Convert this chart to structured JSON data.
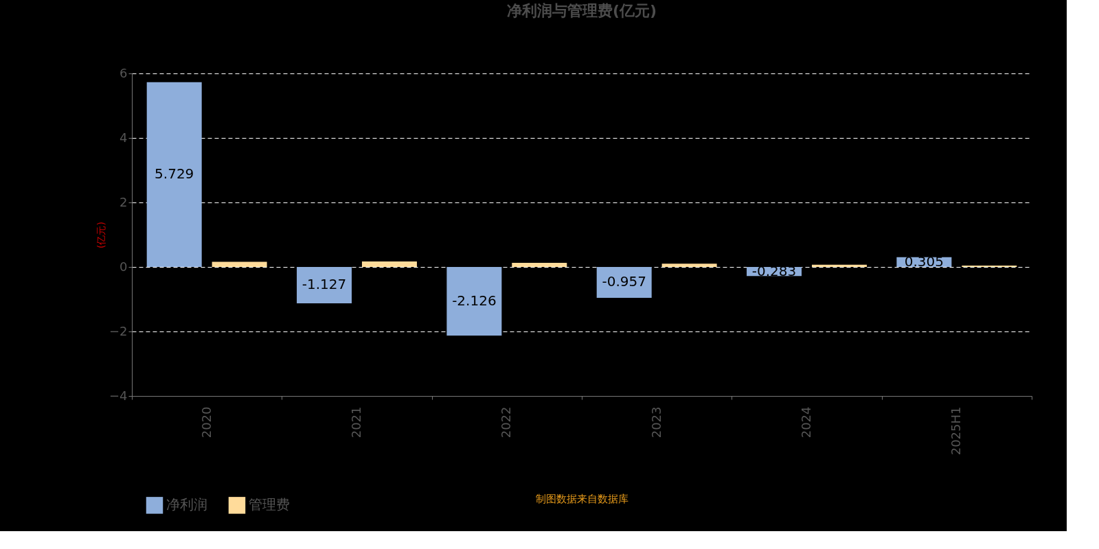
{
  "chart_data": {
    "type": "bar",
    "title": "净利润与管理费(亿元)",
    "ylabel": "(亿元)",
    "categories": [
      "2020",
      "2021",
      "2022",
      "2023",
      "2024",
      "2025H1"
    ],
    "series": [
      {
        "name": "净利润",
        "color": "#8eaedb",
        "values": [
          5.729,
          -1.127,
          -2.126,
          -0.957,
          -0.283,
          0.305
        ],
        "value_labels": [
          "5.729",
          "-1.127",
          "-2.126",
          "-0.957",
          "-0.283",
          "0.305"
        ]
      },
      {
        "name": "管理费",
        "color": "#ffdb9a",
        "values": [
          0.16,
          0.17,
          0.13,
          0.1,
          0.07,
          0.04
        ]
      }
    ],
    "ylim": [
      -4,
      6
    ],
    "yticks": [
      -4,
      -2,
      0,
      2,
      4,
      6
    ],
    "grid": "y",
    "legend": "bottom",
    "annotations": [
      "制图数据来自数据库"
    ]
  }
}
